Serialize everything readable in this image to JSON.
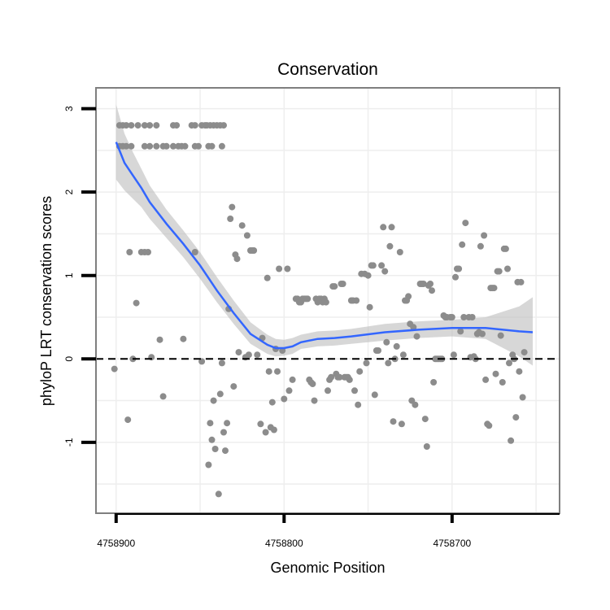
{
  "chart_data": {
    "type": "scatter",
    "title": "Conservation",
    "xlabel": "Genomic Position",
    "ylabel": "phyloP LRT conservation scores",
    "x_reversed": true,
    "xlim": [
      4758912,
      4758636
    ],
    "ylim": [
      -1.85,
      3.25
    ],
    "x_ticks": [
      4758900,
      4758800,
      4758700
    ],
    "y_ticks": [
      -1,
      0,
      1,
      2,
      3
    ],
    "x_tick_labels": [
      "4758900",
      "4758800",
      "4758700"
    ],
    "y_tick_labels": [
      "-1",
      "0",
      "1",
      "2",
      "3"
    ],
    "reference_line_y": 0,
    "grid": true,
    "colors": {
      "points": "#8c8c8c",
      "smooth_line": "#3366ff",
      "confidence_band": "#bdbdbd",
      "panel_border": "#7f7f7f",
      "grid": "#eeeeee"
    },
    "points": [
      [
        4758898,
        2.8
      ],
      [
        4758896,
        2.8
      ],
      [
        4758894,
        2.8
      ],
      [
        4758891,
        2.8
      ],
      [
        4758887,
        2.8
      ],
      [
        4758883,
        2.8
      ],
      [
        4758880,
        2.8
      ],
      [
        4758876,
        2.8
      ],
      [
        4758866,
        2.8
      ],
      [
        4758864,
        2.8
      ],
      [
        4758855,
        2.8
      ],
      [
        4758853,
        2.8
      ],
      [
        4758849,
        2.8
      ],
      [
        4758847,
        2.8
      ],
      [
        4758846,
        2.8
      ],
      [
        4758844,
        2.8
      ],
      [
        4758842,
        2.8
      ],
      [
        4758840,
        2.8
      ],
      [
        4758838,
        2.8
      ],
      [
        4758836,
        2.8
      ],
      [
        4758898,
        2.55
      ],
      [
        4758896,
        2.55
      ],
      [
        4758894,
        2.55
      ],
      [
        4758891,
        2.55
      ],
      [
        4758883,
        2.55
      ],
      [
        4758880,
        2.55
      ],
      [
        4758876,
        2.55
      ],
      [
        4758872,
        2.55
      ],
      [
        4758870,
        2.55
      ],
      [
        4758866,
        2.55
      ],
      [
        4758863,
        2.55
      ],
      [
        4758861,
        2.55
      ],
      [
        4758859,
        2.55
      ],
      [
        4758853,
        2.55
      ],
      [
        4758851,
        2.55
      ],
      [
        4758845,
        2.55
      ],
      [
        4758843,
        2.55
      ],
      [
        4758837,
        2.55
      ],
      [
        4758901,
        -0.12
      ],
      [
        4758893,
        -0.73
      ],
      [
        4758892,
        1.28
      ],
      [
        4758890,
        0.0
      ],
      [
        4758888,
        0.67
      ],
      [
        4758885,
        1.28
      ],
      [
        4758883,
        1.28
      ],
      [
        4758881,
        1.28
      ],
      [
        4758879,
        0.02
      ],
      [
        4758874,
        0.23
      ],
      [
        4758872,
        -0.45
      ],
      [
        4758860,
        0.24
      ],
      [
        4758853,
        1.28
      ],
      [
        4758849,
        -0.03
      ],
      [
        4758845,
        -1.27
      ],
      [
        4758844,
        -0.77
      ],
      [
        4758843,
        -0.97
      ],
      [
        4758842,
        -0.5
      ],
      [
        4758841,
        -1.08
      ],
      [
        4758839,
        -1.62
      ],
      [
        4758838,
        -0.42
      ],
      [
        4758837,
        -0.05
      ],
      [
        4758836,
        -0.88
      ],
      [
        4758835,
        -1.1
      ],
      [
        4758834,
        -0.77
      ],
      [
        4758833,
        0.6
      ],
      [
        4758832,
        1.68
      ],
      [
        4758831,
        1.82
      ],
      [
        4758830,
        -0.33
      ],
      [
        4758829,
        1.25
      ],
      [
        4758828,
        1.2
      ],
      [
        4758827,
        0.08
      ],
      [
        4758825,
        1.6
      ],
      [
        4758823,
        0.02
      ],
      [
        4758822,
        1.48
      ],
      [
        4758821,
        0.05
      ],
      [
        4758820,
        1.3
      ],
      [
        4758819,
        1.3
      ],
      [
        4758818,
        1.3
      ],
      [
        4758816,
        0.05
      ],
      [
        4758814,
        -0.78
      ],
      [
        4758813,
        0.25
      ],
      [
        4758811,
        -0.88
      ],
      [
        4758810,
        0.97
      ],
      [
        4758809,
        -0.15
      ],
      [
        4758808,
        -0.82
      ],
      [
        4758807,
        -0.52
      ],
      [
        4758806,
        -0.85
      ],
      [
        4758805,
        0.12
      ],
      [
        4758804,
        -0.15
      ],
      [
        4758803,
        1.08
      ],
      [
        4758801,
        0.1
      ],
      [
        4758800,
        -0.48
      ],
      [
        4758798,
        1.08
      ],
      [
        4758797,
        -0.38
      ],
      [
        4758795,
        -0.25
      ],
      [
        4758793,
        0.72
      ],
      [
        4758792,
        0.72
      ],
      [
        4758791,
        0.68
      ],
      [
        4758790,
        0.68
      ],
      [
        4758789,
        0.72
      ],
      [
        4758788,
        0.72
      ],
      [
        4758787,
        0.72
      ],
      [
        4758786,
        0.72
      ],
      [
        4758785,
        -0.25
      ],
      [
        4758784,
        -0.28
      ],
      [
        4758783,
        -0.3
      ],
      [
        4758782,
        -0.5
      ],
      [
        4758781,
        0.72
      ],
      [
        4758780,
        0.68
      ],
      [
        4758779,
        0.72
      ],
      [
        4758778,
        0.72
      ],
      [
        4758777,
        0.68
      ],
      [
        4758776,
        0.72
      ],
      [
        4758775,
        0.68
      ],
      [
        4758774,
        -0.38
      ],
      [
        4758773,
        -0.25
      ],
      [
        4758772,
        -0.22
      ],
      [
        4758771,
        0.87
      ],
      [
        4758770,
        0.87
      ],
      [
        4758769,
        -0.18
      ],
      [
        4758768,
        -0.22
      ],
      [
        4758767,
        -0.22
      ],
      [
        4758766,
        0.9
      ],
      [
        4758765,
        0.9
      ],
      [
        4758764,
        -0.22
      ],
      [
        4758763,
        -0.22
      ],
      [
        4758762,
        -0.22
      ],
      [
        4758761,
        -0.25
      ],
      [
        4758760,
        0.7
      ],
      [
        4758759,
        0.7
      ],
      [
        4758758,
        -0.38
      ],
      [
        4758757,
        0.7
      ],
      [
        4758756,
        -0.55
      ],
      [
        4758755,
        -0.15
      ],
      [
        4758754,
        1.02
      ],
      [
        4758752,
        1.02
      ],
      [
        4758751,
        -0.05
      ],
      [
        4758750,
        1.0
      ],
      [
        4758749,
        0.62
      ],
      [
        4758748,
        1.12
      ],
      [
        4758747,
        1.12
      ],
      [
        4758746,
        -0.43
      ],
      [
        4758745,
        0.1
      ],
      [
        4758744,
        0.1
      ],
      [
        4758742,
        1.12
      ],
      [
        4758741,
        1.58
      ],
      [
        4758740,
        1.05
      ],
      [
        4758739,
        0.2
      ],
      [
        4758738,
        -0.05
      ],
      [
        4758737,
        1.35
      ],
      [
        4758736,
        1.58
      ],
      [
        4758735,
        -0.75
      ],
      [
        4758734,
        0.0
      ],
      [
        4758733,
        0.15
      ],
      [
        4758731,
        1.28
      ],
      [
        4758730,
        -0.78
      ],
      [
        4758729,
        0.05
      ],
      [
        4758728,
        0.7
      ],
      [
        4758727,
        0.7
      ],
      [
        4758726,
        0.75
      ],
      [
        4758725,
        0.42
      ],
      [
        4758724,
        -0.5
      ],
      [
        4758723,
        0.38
      ],
      [
        4758722,
        -0.55
      ],
      [
        4758721,
        0.27
      ],
      [
        4758719,
        0.9
      ],
      [
        4758718,
        0.9
      ],
      [
        4758717,
        0.9
      ],
      [
        4758716,
        -0.72
      ],
      [
        4758715,
        -1.05
      ],
      [
        4758714,
        0.88
      ],
      [
        4758713,
        0.9
      ],
      [
        4758712,
        0.82
      ],
      [
        4758711,
        -0.28
      ],
      [
        4758710,
        0.0
      ],
      [
        4758709,
        0.0
      ],
      [
        4758708,
        0.0
      ],
      [
        4758707,
        0.0
      ],
      [
        4758706,
        0.0
      ],
      [
        4758705,
        0.52
      ],
      [
        4758704,
        0.5
      ],
      [
        4758703,
        0.5
      ],
      [
        4758701,
        0.5
      ],
      [
        4758700,
        0.5
      ],
      [
        4758699,
        0.05
      ],
      [
        4758698,
        0.98
      ],
      [
        4758697,
        1.08
      ],
      [
        4758696,
        1.08
      ],
      [
        4758695,
        0.33
      ],
      [
        4758694,
        1.37
      ],
      [
        4758693,
        0.5
      ],
      [
        4758692,
        1.63
      ],
      [
        4758690,
        0.5
      ],
      [
        4758689,
        0.02
      ],
      [
        4758688,
        0.5
      ],
      [
        4758687,
        0.03
      ],
      [
        4758686,
        0.0
      ],
      [
        4758685,
        0.3
      ],
      [
        4758684,
        0.32
      ],
      [
        4758683,
        1.35
      ],
      [
        4758682,
        0.3
      ],
      [
        4758681,
        1.48
      ],
      [
        4758680,
        -0.25
      ],
      [
        4758679,
        -0.78
      ],
      [
        4758678,
        -0.8
      ],
      [
        4758677,
        0.85
      ],
      [
        4758676,
        0.85
      ],
      [
        4758675,
        0.85
      ],
      [
        4758674,
        -0.18
      ],
      [
        4758673,
        1.05
      ],
      [
        4758672,
        1.05
      ],
      [
        4758671,
        0.28
      ],
      [
        4758670,
        -0.28
      ],
      [
        4758669,
        1.32
      ],
      [
        4758668,
        1.32
      ],
      [
        4758667,
        1.08
      ],
      [
        4758666,
        -0.05
      ],
      [
        4758665,
        -0.98
      ],
      [
        4758664,
        0.05
      ],
      [
        4758663,
        0.0
      ],
      [
        4758662,
        -0.7
      ],
      [
        4758661,
        0.92
      ],
      [
        4758660,
        -0.15
      ],
      [
        4758659,
        0.92
      ],
      [
        4758658,
        -0.46
      ],
      [
        4758657,
        0.08
      ]
    ],
    "smooth_line": [
      [
        4758900,
        2.6
      ],
      [
        4758895,
        2.35
      ],
      [
        4758890,
        2.2
      ],
      [
        4758885,
        2.05
      ],
      [
        4758880,
        1.88
      ],
      [
        4758870,
        1.62
      ],
      [
        4758860,
        1.38
      ],
      [
        4758850,
        1.12
      ],
      [
        4758840,
        0.82
      ],
      [
        4758830,
        0.55
      ],
      [
        4758820,
        0.3
      ],
      [
        4758810,
        0.17
      ],
      [
        4758805,
        0.13
      ],
      [
        4758800,
        0.13
      ],
      [
        4758795,
        0.15
      ],
      [
        4758790,
        0.2
      ],
      [
        4758780,
        0.24
      ],
      [
        4758770,
        0.25
      ],
      [
        4758760,
        0.27
      ],
      [
        4758740,
        0.32
      ],
      [
        4758720,
        0.35
      ],
      [
        4758700,
        0.37
      ],
      [
        4758680,
        0.37
      ],
      [
        4758660,
        0.33
      ],
      [
        4758652,
        0.32
      ]
    ],
    "confidence_band": [
      [
        4758900,
        2.15,
        3.05
      ],
      [
        4758895,
        2.02,
        2.7
      ],
      [
        4758890,
        1.92,
        2.48
      ],
      [
        4758885,
        1.82,
        2.28
      ],
      [
        4758880,
        1.68,
        2.08
      ],
      [
        4758870,
        1.45,
        1.79
      ],
      [
        4758860,
        1.22,
        1.54
      ],
      [
        4758850,
        0.96,
        1.28
      ],
      [
        4758840,
        0.68,
        0.98
      ],
      [
        4758830,
        0.42,
        0.7
      ],
      [
        4758820,
        0.18,
        0.44
      ],
      [
        4758810,
        0.06,
        0.29
      ],
      [
        4758805,
        0.03,
        0.24
      ],
      [
        4758800,
        0.04,
        0.23
      ],
      [
        4758795,
        0.06,
        0.25
      ],
      [
        4758790,
        0.12,
        0.29
      ],
      [
        4758780,
        0.15,
        0.33
      ],
      [
        4758770,
        0.16,
        0.34
      ],
      [
        4758760,
        0.18,
        0.36
      ],
      [
        4758740,
        0.22,
        0.42
      ],
      [
        4758720,
        0.25,
        0.45
      ],
      [
        4758700,
        0.27,
        0.47
      ],
      [
        4758680,
        0.24,
        0.5
      ],
      [
        4758660,
        0.03,
        0.63
      ],
      [
        4758652,
        -0.08,
        0.74
      ]
    ]
  }
}
